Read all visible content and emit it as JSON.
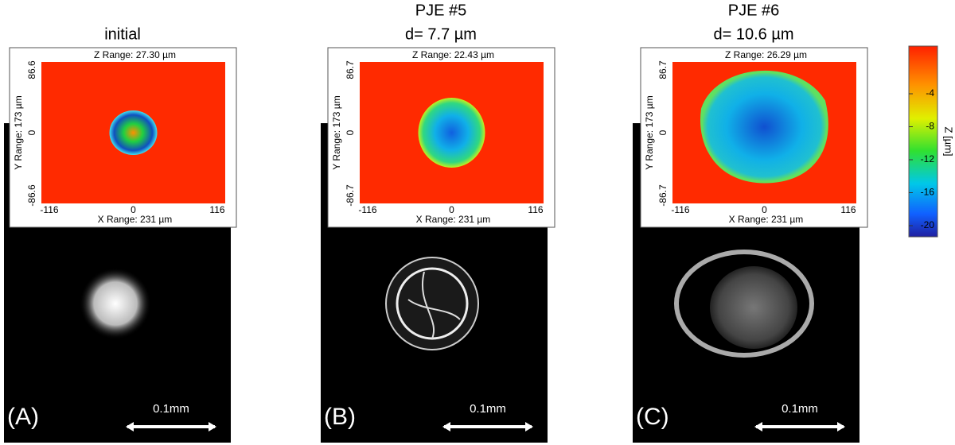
{
  "panels": [
    {
      "title": [
        "initial"
      ],
      "z_range": "Z Range:  27.30 µm",
      "y_label": "Y Range:   173 µm",
      "y_ticks": [
        "86.6",
        "0",
        "-86.6"
      ],
      "x_label": "X Range:  231 µm",
      "x_ticks": [
        "-116",
        "0",
        "116"
      ],
      "scale_bar": "0.1mm",
      "label": "(A)"
    },
    {
      "title": [
        "PJE #5",
        "d= 7.7 µm"
      ],
      "z_range": "Z Range:  22.43 µm",
      "y_label": "Y Range:   173 µm",
      "y_ticks": [
        "86.7",
        "0",
        "-86.7"
      ],
      "x_label": "X Range:  231 µm",
      "x_ticks": [
        "-116",
        "0",
        "116"
      ],
      "scale_bar": "0.1mm",
      "label": "(B)"
    },
    {
      "title": [
        "PJE #6",
        "d= 10.6 µm"
      ],
      "z_range": "Z Range:  26.29 µm",
      "y_label": "Y Range:   173 µm",
      "y_ticks": [
        "86.7",
        "0",
        "-86.7"
      ],
      "x_label": "X Range:  231 µm",
      "x_ticks": [
        "-116",
        "0",
        "116"
      ],
      "scale_bar": "0.1mm",
      "label": "(C)"
    }
  ],
  "colorbar": {
    "ticks": [
      "-4",
      "-8",
      "-12",
      "-16",
      "-20"
    ],
    "label": "Z [µm]"
  }
}
